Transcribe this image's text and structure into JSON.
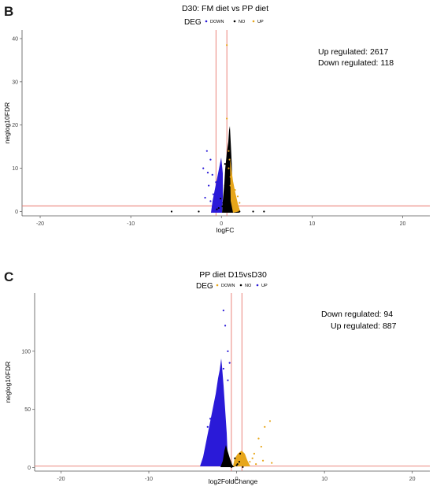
{
  "chart_data": [
    {
      "panel": "B",
      "type": "scatter",
      "title": "D30: FM diet vs PP diet",
      "xlabel": "logFC",
      "ylabel": "neglog10FDR",
      "xlim": [
        -22,
        23
      ],
      "ylim": [
        -1,
        42
      ],
      "x_ticks": [
        -20,
        -10,
        0,
        10,
        20
      ],
      "y_ticks": [
        0,
        10,
        20,
        30,
        40
      ],
      "legend_title": "DEG",
      "legend_position": "top",
      "series": [
        {
          "name": "DOWN",
          "color": "#2a1ad8",
          "points": [
            [
              -2.0,
              10.0
            ],
            [
              -1.6,
              14.0
            ],
            [
              -1.2,
              12.0
            ],
            [
              -1.0,
              8.5
            ],
            [
              -1.4,
              6.0
            ],
            [
              -0.9,
              4.0
            ],
            [
              -1.8,
              3.2
            ],
            [
              -0.6,
              6.8
            ],
            [
              -0.8,
              3.0
            ],
            [
              -1.2,
              2.4
            ],
            [
              -0.5,
              2.2
            ],
            [
              -1.5,
              9.0
            ]
          ]
        },
        {
          "name": "NO",
          "color": "#000000",
          "points": [
            [
              -5.5,
              0
            ],
            [
              3.5,
              0
            ],
            [
              4.7,
              0
            ],
            [
              -2.5,
              0
            ],
            [
              2.0,
              0
            ],
            [
              -0.3,
              0.8
            ],
            [
              0.1,
              1.2
            ],
            [
              0.2,
              2.0
            ],
            [
              0.5,
              4.0
            ],
            [
              0.4,
              6.0
            ],
            [
              0.5,
              9.0
            ],
            [
              0.4,
              11.0
            ],
            [
              -0.1,
              3.0
            ],
            [
              0.3,
              1.0
            ],
            [
              -0.5,
              0.5
            ],
            [
              0.7,
              0.4
            ]
          ]
        },
        {
          "name": "UP",
          "color": "#e7a61a",
          "points": [
            [
              0.6,
              38.5
            ],
            [
              0.6,
              21.5
            ],
            [
              0.8,
              14.0
            ],
            [
              0.8,
              10.0
            ],
            [
              1.0,
              8.0
            ],
            [
              1.5,
              5.0
            ],
            [
              1.8,
              3.5
            ],
            [
              1.2,
              3.0
            ],
            [
              2.0,
              2.0
            ],
            [
              1.0,
              6.0
            ],
            [
              1.3,
              4.5
            ],
            [
              0.9,
              12.0
            ]
          ]
        }
      ],
      "threshold_lines": {
        "x": [
          -0.6,
          0.6
        ],
        "y": [
          1.3
        ],
        "color": "#e8766d"
      },
      "annotations": [
        {
          "text": "Up regulated: 2617"
        },
        {
          "text": "Down regulated: 118"
        }
      ]
    },
    {
      "panel": "C",
      "type": "scatter",
      "title": "PP diet D15vsD30",
      "xlabel": "log2FoldChange",
      "ylabel": "neglog10FDR",
      "xlim": [
        -23,
        22
      ],
      "ylim": [
        -3,
        150
      ],
      "x_ticks": [
        -20,
        -10,
        0,
        10,
        20
      ],
      "y_ticks": [
        0,
        50,
        100
      ],
      "legend_title": "DEG",
      "legend_position": "top",
      "series": [
        {
          "name": "DOWN",
          "color": "#2a1ad8",
          "points": [
            [
              -1.5,
              135
            ],
            [
              -1.3,
              122
            ],
            [
              -1.0,
              100
            ],
            [
              -1.5,
              85
            ],
            [
              -1.8,
              70
            ],
            [
              -2.2,
              58
            ],
            [
              -2.5,
              48
            ],
            [
              -3.0,
              42
            ],
            [
              -3.3,
              35
            ],
            [
              -2.8,
              22
            ],
            [
              -2.2,
              18
            ],
            [
              -3.5,
              8
            ],
            [
              -2.5,
              5
            ],
            [
              -1.0,
              75
            ],
            [
              -0.8,
              90
            ]
          ]
        },
        {
          "name": "NO",
          "color": "#000000",
          "points": [
            [
              -0.5,
              1
            ],
            [
              0.0,
              2
            ],
            [
              0.3,
              5
            ],
            [
              -0.2,
              8
            ],
            [
              0.4,
              12
            ],
            [
              0.1,
              3
            ],
            [
              -0.6,
              0.5
            ],
            [
              0.7,
              0.5
            ]
          ]
        },
        {
          "name": "UP",
          "color": "#e7a61a",
          "points": [
            [
              3.8,
              40
            ],
            [
              3.2,
              35
            ],
            [
              2.5,
              25
            ],
            [
              2.8,
              18
            ],
            [
              2.0,
              12
            ],
            [
              1.8,
              8
            ],
            [
              3.0,
              6
            ],
            [
              4.0,
              4
            ],
            [
              2.2,
              3
            ],
            [
              1.5,
              5
            ]
          ]
        }
      ],
      "threshold_lines": {
        "x": [
          -0.6,
          0.6
        ],
        "y": [
          1.3
        ],
        "color": "#e8766d"
      },
      "annotations": [
        {
          "text": "Down regulated: 94"
        },
        {
          "text": "Up regulated: 887"
        }
      ]
    }
  ]
}
